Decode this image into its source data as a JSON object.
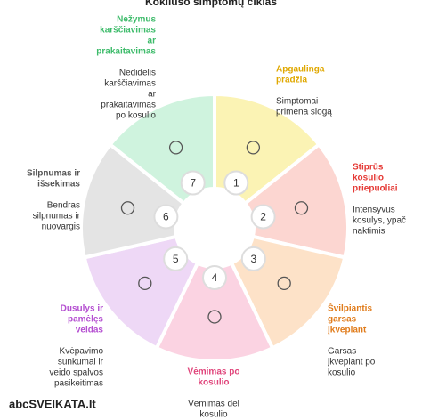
{
  "title": "Kokliušo simptomų ciklas",
  "footer": "abcSVEIKATA.lt",
  "steps": [
    {
      "number": "1",
      "color": "#fbf3b4",
      "title_color": "#e0a800",
      "title": [
        "Apgaulinga",
        "pradžia"
      ],
      "text": [
        "Simptomai",
        "primena slogą"
      ]
    },
    {
      "number": "2",
      "color": "#fcd6d1",
      "title_color": "#e53935",
      "title": [
        "Stiprūs",
        "kosulio",
        "priepuoliai"
      ],
      "text": [
        "Intensyvus",
        "kosulys, ypač",
        "naktimis"
      ]
    },
    {
      "number": "3",
      "color": "#fde2c8",
      "title_color": "#e07b1a",
      "title": [
        "Švilpiantis",
        "garsas",
        "įkvepiant"
      ],
      "text": [
        "Garsas",
        "įkvepiant po",
        "kosulio"
      ]
    },
    {
      "number": "4",
      "color": "#fbd3e2",
      "title_color": "#e0457b",
      "title": [
        "Vėmimas po",
        "kosulio"
      ],
      "text": [
        "Vėmimas dėl",
        "kosulio"
      ]
    },
    {
      "number": "5",
      "color": "#eed8f6",
      "title_color": "#b44fd1",
      "title": [
        "Dusulys ir",
        "pamėlęs",
        "veidas"
      ],
      "text": [
        "Kvėpavimo",
        "sunkumai ir",
        "veido spalvos",
        "pasikeitimas"
      ]
    },
    {
      "number": "6",
      "color": "#e4e4e4",
      "title_color": "#555555",
      "title": [
        "Silpnumas ir",
        "išsekimas"
      ],
      "text": [
        "Bendras",
        "silpnumas ir",
        "nuovargis"
      ]
    },
    {
      "number": "7",
      "color": "#cff3de",
      "title_color": "#3dbb6a",
      "title": [
        "Nežymus",
        "karščiavimas",
        "ar",
        "prakaitavimas"
      ],
      "text": [
        "Nedidelis",
        "karščiavimas",
        "ar",
        "prakaitavimas",
        "po kosulio"
      ]
    }
  ]
}
